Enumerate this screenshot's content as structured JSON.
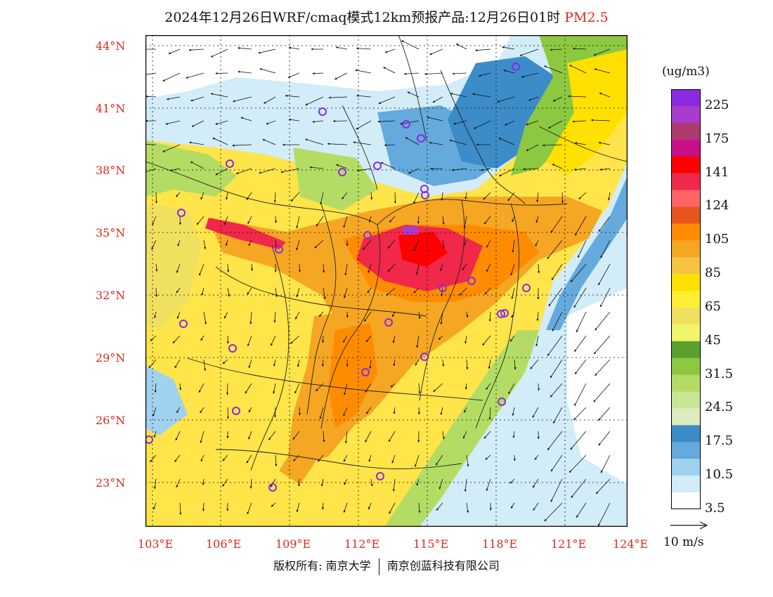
{
  "title": {
    "main": "2024年12月26日WRF/cmaq模式12km预报产品:12月26日01时",
    "species": "PM2.5"
  },
  "lat_labels": [
    "44°N",
    "41°N",
    "38°N",
    "35°N",
    "32°N",
    "29°N",
    "26°N",
    "23°N"
  ],
  "lon_labels": [
    "103°E",
    "106°E",
    "109°E",
    "112°E",
    "115°E",
    "118°E",
    "121°E",
    "124°E"
  ],
  "colorbar": {
    "unit": "(ug/m3)",
    "labels": [
      "225",
      "175",
      "141",
      "124",
      "105",
      "85",
      "65",
      "45",
      "31.5",
      "24.5",
      "17.5",
      "10.5",
      "3.5"
    ],
    "colors": [
      "#8a2be2",
      "#a93ccf",
      "#b03a6e",
      "#c8108a",
      "#ff0000",
      "#f0284a",
      "#ff6464",
      "#e85520",
      "#ff8c00",
      "#f5a623",
      "#f7c342",
      "#ffe000",
      "#ffee33",
      "#f0e060",
      "#f0f56a",
      "#5aa02c",
      "#8cc840",
      "#b4dc64",
      "#c8e696",
      "#dcecbe",
      "#3c8cc8",
      "#64aadc",
      "#a0d2f0",
      "#d2ecf8",
      "#ffffff"
    ]
  },
  "wind_scale": {
    "label": "10 m/s"
  },
  "footer": {
    "left": "版权所有: 南京大学",
    "right": "南京创蓝科技有限公司"
  },
  "cities": [
    {
      "name": "harbin-marker"
    },
    {
      "name": "hohhot-marker"
    },
    {
      "name": "beijing-marker"
    },
    {
      "name": "chengde-marker"
    },
    {
      "name": "taiyuan-marker"
    },
    {
      "name": "shijiazhuang-marker"
    },
    {
      "name": "tianjin-marker"
    },
    {
      "name": "yinchuan-marker"
    },
    {
      "name": "xining-marker"
    },
    {
      "name": "lanzhou-marker"
    },
    {
      "name": "xian-marker"
    },
    {
      "name": "zhengzhou-marker"
    },
    {
      "name": "jinan-marker"
    },
    {
      "name": "hefei-marker"
    },
    {
      "name": "nanjing-marker"
    },
    {
      "name": "shanghai-marker"
    },
    {
      "name": "hangzhou-marker"
    },
    {
      "name": "wuhan-marker"
    },
    {
      "name": "chengdu-marker"
    },
    {
      "name": "chongqing-marker"
    },
    {
      "name": "changsha-marker"
    },
    {
      "name": "nanchang-marker"
    },
    {
      "name": "fuzhou-marker"
    },
    {
      "name": "guiyang-marker"
    },
    {
      "name": "kunming-marker"
    },
    {
      "name": "nanning-marker"
    },
    {
      "name": "guangzhou-marker"
    }
  ]
}
